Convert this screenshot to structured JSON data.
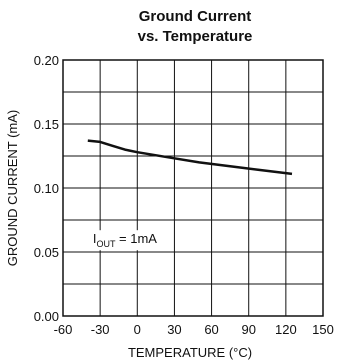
{
  "chart_data": {
    "type": "line",
    "title_line1": "Ground Current",
    "title_line2": "vs. Temperature",
    "xlabel": "TEMPERATURE (°C)",
    "ylabel": "GROUND CURRENT (mA)",
    "xlim": [
      -60,
      150
    ],
    "ylim": [
      0,
      0.2
    ],
    "x_ticks": [
      -60,
      -30,
      0,
      30,
      60,
      90,
      120,
      150
    ],
    "x_tick_labels": [
      "-60",
      "-30",
      "0",
      "30",
      "60",
      "90",
      "120",
      "150"
    ],
    "y_ticks": [
      0,
      0.05,
      0.1,
      0.15,
      0.2
    ],
    "y_tick_labels": [
      "0.00",
      "0.05",
      "0.10",
      "0.15",
      "0.20"
    ],
    "grid": true,
    "annotation": {
      "prefix": "I",
      "sub": "OUT",
      "suffix": " = 1mA",
      "x": -10,
      "y": 0.06
    },
    "series": [
      {
        "x": [
          -40,
          -30,
          -20,
          -10,
          0,
          25,
          50,
          75,
          100,
          125
        ],
        "y": [
          0.137,
          0.136,
          0.133,
          0.13,
          0.128,
          0.124,
          0.12,
          0.117,
          0.114,
          0.111
        ]
      }
    ]
  }
}
